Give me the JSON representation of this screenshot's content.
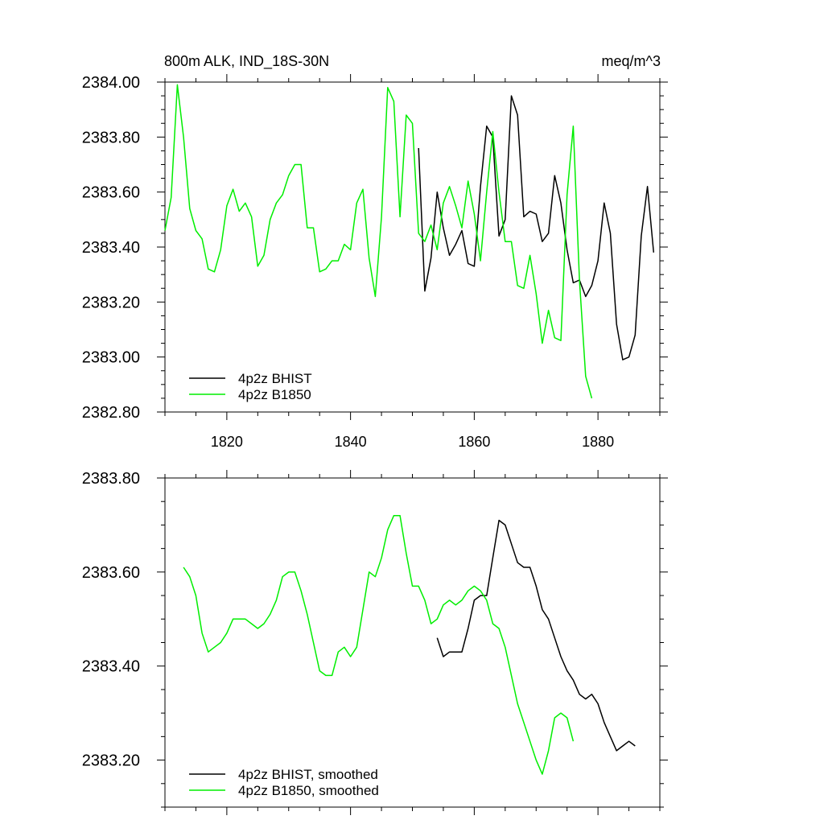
{
  "colors": {
    "bhist": "#000000",
    "b1850": "#00ee00",
    "axis": "#000000",
    "background": "#ffffff"
  },
  "chart_data": [
    {
      "type": "line",
      "title": "800m ALK, IND_18S-30N",
      "units": "meq/m^3",
      "xlim": [
        1810,
        1890
      ],
      "ylim": [
        2382.8,
        2384.0
      ],
      "yticks": [
        "2382.80",
        "2383.00",
        "2383.20",
        "2383.40",
        "2383.60",
        "2383.80",
        "2384.00"
      ],
      "xticks": [
        "1820",
        "1840",
        "1860",
        "1880"
      ],
      "legend_position": "bottom-left",
      "series": [
        {
          "name": "4p2z BHIST",
          "color": "#000000",
          "x": [
            1851,
            1852,
            1853,
            1854,
            1855,
            1856,
            1857,
            1858,
            1859,
            1860,
            1861,
            1862,
            1863,
            1864,
            1865,
            1866,
            1867,
            1868,
            1869,
            1870,
            1871,
            1872,
            1873,
            1874,
            1875,
            1876,
            1877,
            1878,
            1879,
            1880,
            1881,
            1882,
            1883,
            1884,
            1885,
            1886,
            1887,
            1888,
            1889
          ],
          "values": [
            2383.76,
            2383.24,
            2383.36,
            2383.6,
            2383.47,
            2383.37,
            2383.41,
            2383.46,
            2383.34,
            2383.33,
            2383.62,
            2383.84,
            2383.8,
            2383.44,
            2383.5,
            2383.95,
            2383.88,
            2383.51,
            2383.53,
            2383.52,
            2383.42,
            2383.45,
            2383.66,
            2383.56,
            2383.39,
            2383.27,
            2383.28,
            2383.22,
            2383.26,
            2383.35,
            2383.56,
            2383.45,
            2383.12,
            2382.99,
            2383.0,
            2383.08,
            2383.44,
            2383.62,
            2383.38
          ]
        },
        {
          "name": "4p2z B1850",
          "color": "#00ee00",
          "x": [
            1810,
            1811,
            1812,
            1813,
            1814,
            1815,
            1816,
            1817,
            1818,
            1819,
            1820,
            1821,
            1822,
            1823,
            1824,
            1825,
            1826,
            1827,
            1828,
            1829,
            1830,
            1831,
            1832,
            1833,
            1834,
            1835,
            1836,
            1837,
            1838,
            1839,
            1840,
            1841,
            1842,
            1843,
            1844,
            1845,
            1846,
            1847,
            1848,
            1849,
            1850,
            1851,
            1852,
            1853,
            1854,
            1855,
            1856,
            1857,
            1858,
            1859,
            1860,
            1861,
            1862,
            1863,
            1864,
            1865,
            1866,
            1867,
            1868,
            1869,
            1870,
            1871,
            1872,
            1873,
            1874,
            1875,
            1876,
            1877,
            1878,
            1879
          ],
          "values": [
            2383.46,
            2383.58,
            2383.99,
            2383.8,
            2383.54,
            2383.46,
            2383.43,
            2383.32,
            2383.31,
            2383.39,
            2383.55,
            2383.61,
            2383.53,
            2383.56,
            2383.51,
            2383.33,
            2383.37,
            2383.5,
            2383.56,
            2383.59,
            2383.66,
            2383.7,
            2383.7,
            2383.47,
            2383.47,
            2383.31,
            2383.32,
            2383.35,
            2383.35,
            2383.41,
            2383.39,
            2383.56,
            2383.61,
            2383.36,
            2383.22,
            2383.51,
            2383.98,
            2383.93,
            2383.51,
            2383.88,
            2383.85,
            2383.45,
            2383.42,
            2383.48,
            2383.39,
            2383.56,
            2383.62,
            2383.55,
            2383.47,
            2383.64,
            2383.52,
            2383.35,
            2383.6,
            2383.82,
            2383.6,
            2383.42,
            2383.42,
            2383.26,
            2383.25,
            2383.37,
            2383.23,
            2383.05,
            2383.17,
            2383.07,
            2383.06,
            2383.59,
            2383.84,
            2383.28,
            2382.93,
            2382.85
          ]
        }
      ]
    },
    {
      "type": "line",
      "xlim": [
        1810,
        1890
      ],
      "ylim": [
        2383.1,
        2383.8
      ],
      "yticks": [
        "2383.20",
        "2383.40",
        "2383.60",
        "2383.80"
      ],
      "legend_position": "bottom-left",
      "series": [
        {
          "name": "4p2z BHIST, smoothed",
          "color": "#000000",
          "x": [
            1854,
            1855,
            1856,
            1857,
            1858,
            1859,
            1860,
            1861,
            1862,
            1863,
            1864,
            1865,
            1866,
            1867,
            1868,
            1869,
            1870,
            1871,
            1872,
            1873,
            1874,
            1875,
            1876,
            1877,
            1878,
            1879,
            1880,
            1881,
            1882,
            1883,
            1884,
            1885,
            1886
          ],
          "values": [
            2383.46,
            2383.42,
            2383.43,
            2383.43,
            2383.43,
            2383.48,
            2383.54,
            2383.55,
            2383.55,
            2383.63,
            2383.71,
            2383.7,
            2383.66,
            2383.62,
            2383.61,
            2383.61,
            2383.57,
            2383.52,
            2383.5,
            2383.46,
            2383.42,
            2383.39,
            2383.37,
            2383.34,
            2383.33,
            2383.34,
            2383.32,
            2383.28,
            2383.25,
            2383.22,
            2383.23,
            2383.24,
            2383.23
          ]
        },
        {
          "name": "4p2z B1850, smoothed",
          "color": "#00ee00",
          "x": [
            1813,
            1814,
            1815,
            1816,
            1817,
            1818,
            1819,
            1820,
            1821,
            1822,
            1823,
            1824,
            1825,
            1826,
            1827,
            1828,
            1829,
            1830,
            1831,
            1832,
            1833,
            1834,
            1835,
            1836,
            1837,
            1838,
            1839,
            1840,
            1841,
            1842,
            1843,
            1844,
            1845,
            1846,
            1847,
            1848,
            1849,
            1850,
            1851,
            1852,
            1853,
            1854,
            1855,
            1856,
            1857,
            1858,
            1859,
            1860,
            1861,
            1862,
            1863,
            1864,
            1865,
            1866,
            1867,
            1868,
            1869,
            1870,
            1871,
            1872,
            1873,
            1874,
            1875,
            1876
          ],
          "values": [
            2383.61,
            2383.59,
            2383.55,
            2383.47,
            2383.43,
            2383.44,
            2383.45,
            2383.47,
            2383.5,
            2383.5,
            2383.5,
            2383.49,
            2383.48,
            2383.49,
            2383.51,
            2383.54,
            2383.59,
            2383.6,
            2383.6,
            2383.56,
            2383.51,
            2383.45,
            2383.39,
            2383.38,
            2383.38,
            2383.43,
            2383.44,
            2383.42,
            2383.44,
            2383.52,
            2383.6,
            2383.59,
            2383.63,
            2383.69,
            2383.72,
            2383.72,
            2383.64,
            2383.57,
            2383.57,
            2383.54,
            2383.49,
            2383.5,
            2383.53,
            2383.54,
            2383.53,
            2383.54,
            2383.56,
            2383.57,
            2383.56,
            2383.54,
            2383.49,
            2383.48,
            2383.44,
            2383.38,
            2383.32,
            2383.28,
            2383.24,
            2383.2,
            2383.17,
            2383.22,
            2383.29,
            2383.3,
            2383.29,
            2383.24
          ]
        }
      ]
    }
  ]
}
